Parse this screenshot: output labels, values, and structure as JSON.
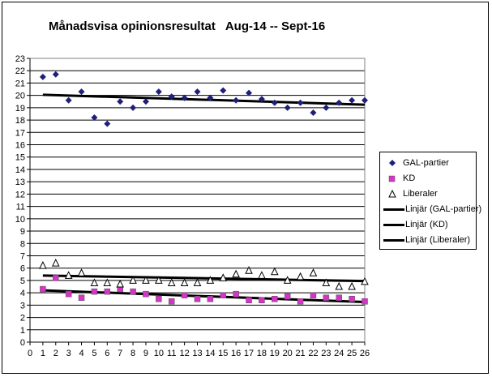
{
  "chart_data": {
    "type": "scatter",
    "title": "Månadsvisa opinionsresultat   Aug-14 -- Sept-16",
    "xlim": [
      0,
      26
    ],
    "ylim": [
      0,
      23
    ],
    "x_ticks": [
      "0",
      "1",
      "2",
      "3",
      "4",
      "5",
      "6",
      "7",
      "8",
      "9",
      "10",
      "11",
      "12",
      "13",
      "14",
      "15",
      "16",
      "17",
      "18",
      "19",
      "20",
      "21",
      "22",
      "23",
      "24",
      "25",
      "26"
    ],
    "y_ticks": [
      "0",
      "1",
      "2",
      "3",
      "4",
      "5",
      "6",
      "7",
      "8",
      "9",
      "10",
      "11",
      "12",
      "13",
      "14",
      "15",
      "16",
      "17",
      "18",
      "19",
      "20",
      "21",
      "22",
      "23"
    ],
    "grid": "horizontal",
    "series": [
      {
        "name": "GAL-partier",
        "marker": "diamond",
        "color": "#1f1f7a",
        "x": [
          1,
          2,
          3,
          4,
          5,
          6,
          7,
          8,
          9,
          10,
          11,
          12,
          13,
          14,
          15,
          16,
          17,
          18,
          19,
          20,
          21,
          22,
          23,
          24,
          25,
          26
        ],
        "values": [
          21.5,
          21.7,
          19.6,
          20.3,
          18.2,
          17.7,
          19.5,
          19.0,
          19.5,
          20.3,
          19.9,
          19.8,
          20.3,
          19.8,
          20.4,
          19.6,
          20.2,
          19.7,
          19.4,
          19.0,
          19.4,
          18.6,
          19.0,
          19.4,
          19.6,
          19.6
        ]
      },
      {
        "name": "KD",
        "marker": "square",
        "color": "#d633c8",
        "x": [
          1,
          2,
          3,
          4,
          5,
          6,
          7,
          8,
          9,
          10,
          11,
          12,
          13,
          14,
          15,
          16,
          17,
          18,
          19,
          20,
          21,
          22,
          23,
          24,
          25,
          26
        ],
        "values": [
          4.3,
          5.2,
          3.9,
          3.6,
          4.1,
          4.1,
          4.3,
          4.1,
          3.9,
          3.5,
          3.3,
          3.8,
          3.5,
          3.5,
          3.8,
          3.9,
          3.4,
          3.4,
          3.5,
          3.7,
          3.3,
          3.8,
          3.6,
          3.6,
          3.5,
          3.3
        ]
      },
      {
        "name": "Liberaler",
        "marker": "triangle",
        "color": "#000000",
        "x": [
          1,
          2,
          3,
          4,
          5,
          6,
          7,
          8,
          9,
          10,
          11,
          12,
          13,
          14,
          15,
          16,
          17,
          18,
          19,
          20,
          21,
          22,
          23,
          24,
          25,
          26
        ],
        "values": [
          6.2,
          6.4,
          5.4,
          5.6,
          4.8,
          4.8,
          4.7,
          5.0,
          5.0,
          5.0,
          4.8,
          4.8,
          4.8,
          5.0,
          5.2,
          5.5,
          5.8,
          5.4,
          5.7,
          5.0,
          5.3,
          5.6,
          4.8,
          4.5,
          4.5,
          4.9
        ]
      }
    ],
    "trendlines": [
      {
        "name": "Linjär (GAL-partier)",
        "x": [
          1,
          26
        ],
        "values": [
          20.05,
          19.25
        ]
      },
      {
        "name": "Linjär (KD)",
        "x": [
          1,
          26
        ],
        "values": [
          4.2,
          3.25
        ]
      },
      {
        "name": "Linjär (Liberaler)",
        "x": [
          1,
          26
        ],
        "values": [
          5.4,
          4.95
        ]
      }
    ]
  }
}
